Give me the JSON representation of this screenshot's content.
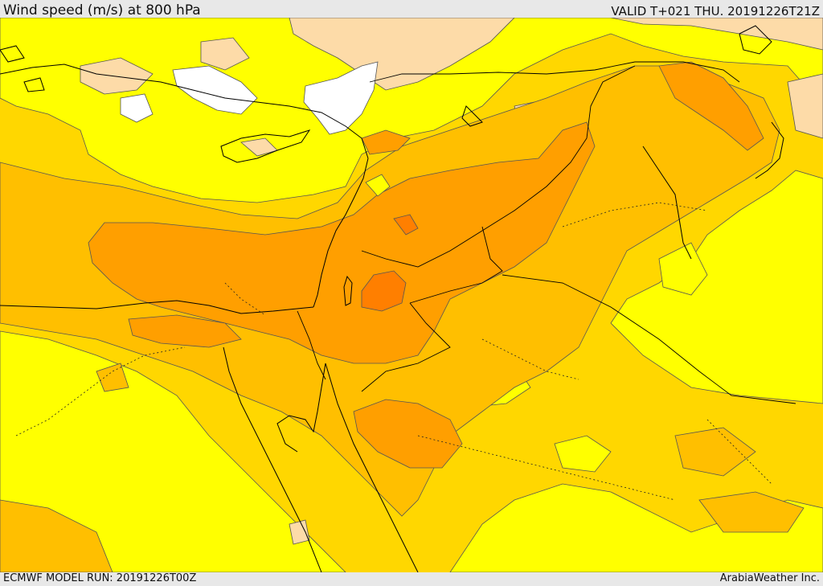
{
  "header": {
    "title": "Wind speed (m/s) at 800 hPa",
    "valid": "VALID T+021 THU. 20191226T21Z"
  },
  "footer": {
    "model_run": "ECMWF MODEL RUN: 20191226T00Z",
    "provider": "ArabiaWeather Inc."
  },
  "map": {
    "variable": "wind speed",
    "level_hpa": 800,
    "units": "m/s",
    "colors": {
      "calm": "#ffffff",
      "light": "#fddba8",
      "bright_yellow": "#ffff00",
      "gold": "#ffd700",
      "amber": "#ffbf00",
      "orange": "#ff9f00",
      "dark_orange": "#ff7f00",
      "contour": "#333333",
      "coast": "#000000"
    }
  }
}
